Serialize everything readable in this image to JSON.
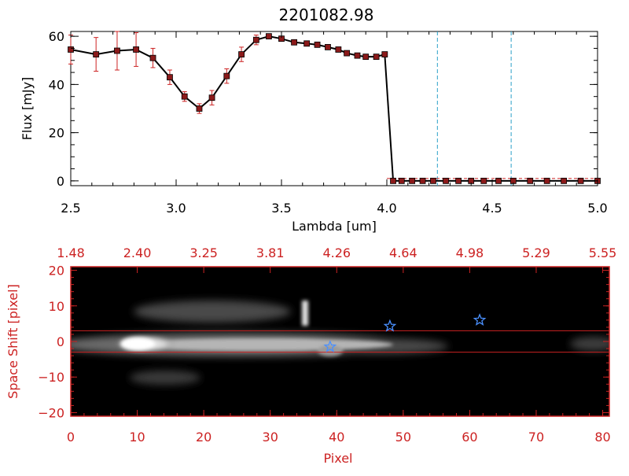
{
  "title": "2201082.98",
  "colors": {
    "black": "#000000",
    "red": "#cc2222",
    "data_line": "#000000",
    "marker": "#8b1a1a",
    "errbar": "#cc2222",
    "cyan_line": "#2aa0c8",
    "star": "#4a90ff",
    "background": "#ffffff"
  },
  "chart_data": [
    {
      "type": "line",
      "title": "2201082.98",
      "xlabel": "Lambda [um]",
      "ylabel": "Flux [mJy]",
      "xlim": [
        2.5,
        5.0
      ],
      "ylim": [
        -2,
        62
      ],
      "x_ticks": [
        2.5,
        3.0,
        3.5,
        4.0,
        4.5,
        5.0
      ],
      "x_tick_labels": [
        "2.5",
        "3.0",
        "3.5",
        "4.0",
        "4.5",
        "5.0"
      ],
      "y_ticks": [
        0,
        20,
        40,
        60
      ],
      "y_tick_labels": [
        "0",
        "20",
        "40",
        "60"
      ],
      "series": [
        {
          "x": [
            2.5,
            2.62,
            2.72,
            2.81,
            2.89,
            2.97,
            3.04,
            3.11,
            3.17,
            3.24,
            3.31,
            3.38,
            3.44,
            3.5,
            3.56,
            3.62,
            3.67,
            3.72,
            3.77,
            3.81,
            3.86,
            3.9,
            3.95,
            3.99,
            4.03,
            4.07,
            4.12,
            4.17,
            4.22,
            4.28,
            4.34,
            4.4,
            4.46,
            4.53,
            4.6,
            4.68,
            4.76,
            4.84,
            4.92,
            5.0
          ],
          "y": [
            54.5,
            52.5,
            54.0,
            54.5,
            51.0,
            43.0,
            35.0,
            30.0,
            34.5,
            43.5,
            52.5,
            58.5,
            60.0,
            59.0,
            57.5,
            57.0,
            56.5,
            55.5,
            54.5,
            53.0,
            52.0,
            51.5,
            51.5,
            52.5,
            0,
            0,
            0,
            0,
            0,
            0,
            0,
            0,
            0,
            0,
            0,
            0,
            0,
            0,
            0,
            0
          ],
          "yerr": [
            6,
            7,
            8,
            7,
            4,
            3,
            2,
            2,
            3,
            3,
            3,
            2,
            1,
            1,
            1,
            1,
            1,
            1,
            1,
            1,
            1,
            1,
            1,
            1,
            0.6,
            0.6,
            0.6,
            0.6,
            0.6,
            0.6,
            0.6,
            0.6,
            0.6,
            0.6,
            0.6,
            0.6,
            0.6,
            0.6,
            0.6,
            0.6
          ]
        }
      ],
      "vertical_lines": [
        4.24,
        4.59
      ],
      "baseline_y": 0
    },
    {
      "type": "heatmap",
      "xlabel": "Pixel",
      "ylabel": "Space Shift [pixel]",
      "xlim": [
        0,
        81
      ],
      "ylim": [
        -21,
        21
      ],
      "x_ticks": [
        0,
        10,
        20,
        30,
        40,
        50,
        60,
        70,
        80
      ],
      "x_tick_labels": [
        "0",
        "10",
        "20",
        "30",
        "40",
        "50",
        "60",
        "70",
        "80"
      ],
      "y_ticks": [
        -20,
        -10,
        0,
        10,
        20
      ],
      "y_tick_labels": [
        "−20",
        "−10",
        "0",
        "10",
        "20"
      ],
      "top_axis_ticks": [
        0,
        10,
        20,
        30,
        40,
        50,
        60,
        70,
        80
      ],
      "top_axis_labels": [
        "1.48",
        "2.40",
        "3.25",
        "3.81",
        "4.26",
        "4.64",
        "4.98",
        "5.29",
        "5.55"
      ],
      "aperture_lines_y": [
        3,
        -3
      ],
      "stars": [
        {
          "x": 39,
          "y": -1.5
        },
        {
          "x": 48,
          "y": 4.3
        },
        {
          "x": 61.5,
          "y": 6
        }
      ]
    }
  ]
}
